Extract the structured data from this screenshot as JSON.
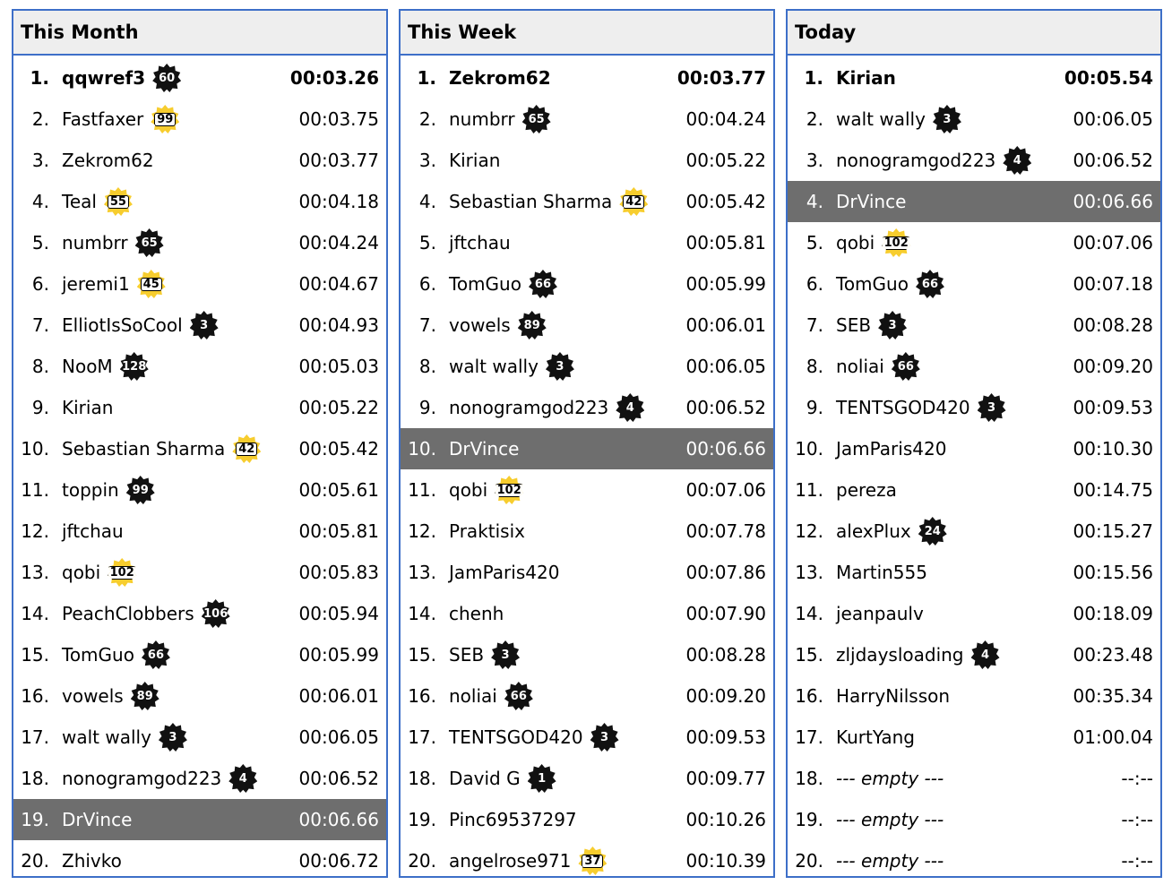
{
  "colors": {
    "border": "#3d6fc8",
    "header_bg": "#eeeeee",
    "highlight_bg": "#6e6e6e",
    "badge_dark": "#111111",
    "badge_gold": "#f7cd2e"
  },
  "boards": [
    {
      "title": "This Month",
      "rows": [
        {
          "rank": "1.",
          "name": "qqwref3",
          "badge": "60",
          "badge_style": "dark",
          "time": "00:03.26"
        },
        {
          "rank": "2.",
          "name": "Fastfaxer",
          "badge": "99",
          "badge_style": "gold",
          "time": "00:03.75"
        },
        {
          "rank": "3.",
          "name": "Zekrom62",
          "badge": "",
          "badge_style": "",
          "time": "00:03.77"
        },
        {
          "rank": "4.",
          "name": "Teal",
          "badge": "55",
          "badge_style": "gold",
          "time": "00:04.18"
        },
        {
          "rank": "5.",
          "name": "numbrr",
          "badge": "65",
          "badge_style": "dark",
          "time": "00:04.24"
        },
        {
          "rank": "6.",
          "name": "jeremi1",
          "badge": "45",
          "badge_style": "gold",
          "time": "00:04.67"
        },
        {
          "rank": "7.",
          "name": "ElliotIsSoCool",
          "badge": "3",
          "badge_style": "dark",
          "time": "00:04.93"
        },
        {
          "rank": "8.",
          "name": "NooM",
          "badge": "128",
          "badge_style": "dark",
          "time": "00:05.03"
        },
        {
          "rank": "9.",
          "name": "Kirian",
          "badge": "",
          "badge_style": "",
          "time": "00:05.22"
        },
        {
          "rank": "10.",
          "name": "Sebastian Sharma",
          "badge": "42",
          "badge_style": "gold",
          "time": "00:05.42"
        },
        {
          "rank": "11.",
          "name": "toppin",
          "badge": "99",
          "badge_style": "dark",
          "time": "00:05.61"
        },
        {
          "rank": "12.",
          "name": "jftchau",
          "badge": "",
          "badge_style": "",
          "time": "00:05.81"
        },
        {
          "rank": "13.",
          "name": "qobi",
          "badge": "102",
          "badge_style": "gold",
          "time": "00:05.83"
        },
        {
          "rank": "14.",
          "name": "PeachClobbers",
          "badge": "106",
          "badge_style": "dark",
          "time": "00:05.94"
        },
        {
          "rank": "15.",
          "name": "TomGuo",
          "badge": "66",
          "badge_style": "dark",
          "time": "00:05.99"
        },
        {
          "rank": "16.",
          "name": "vowels",
          "badge": "89",
          "badge_style": "dark",
          "time": "00:06.01"
        },
        {
          "rank": "17.",
          "name": "walt wally",
          "badge": "3",
          "badge_style": "dark",
          "time": "00:06.05"
        },
        {
          "rank": "18.",
          "name": "nonogramgod223",
          "badge": "4",
          "badge_style": "dark",
          "time": "00:06.52"
        },
        {
          "rank": "19.",
          "name": "DrVince",
          "badge": "",
          "badge_style": "",
          "time": "00:06.66",
          "highlight": true
        },
        {
          "rank": "20.",
          "name": "Zhivko",
          "badge": "",
          "badge_style": "",
          "time": "00:06.72"
        }
      ]
    },
    {
      "title": "This Week",
      "rows": [
        {
          "rank": "1.",
          "name": "Zekrom62",
          "badge": "",
          "badge_style": "",
          "time": "00:03.77"
        },
        {
          "rank": "2.",
          "name": "numbrr",
          "badge": "65",
          "badge_style": "dark",
          "time": "00:04.24"
        },
        {
          "rank": "3.",
          "name": "Kirian",
          "badge": "",
          "badge_style": "",
          "time": "00:05.22"
        },
        {
          "rank": "4.",
          "name": "Sebastian Sharma",
          "badge": "42",
          "badge_style": "gold",
          "time": "00:05.42"
        },
        {
          "rank": "5.",
          "name": "jftchau",
          "badge": "",
          "badge_style": "",
          "time": "00:05.81"
        },
        {
          "rank": "6.",
          "name": "TomGuo",
          "badge": "66",
          "badge_style": "dark",
          "time": "00:05.99"
        },
        {
          "rank": "7.",
          "name": "vowels",
          "badge": "89",
          "badge_style": "dark",
          "time": "00:06.01"
        },
        {
          "rank": "8.",
          "name": "walt wally",
          "badge": "3",
          "badge_style": "dark",
          "time": "00:06.05"
        },
        {
          "rank": "9.",
          "name": "nonogramgod223",
          "badge": "4",
          "badge_style": "dark",
          "time": "00:06.52"
        },
        {
          "rank": "10.",
          "name": "DrVince",
          "badge": "",
          "badge_style": "",
          "time": "00:06.66",
          "highlight": true
        },
        {
          "rank": "11.",
          "name": "qobi",
          "badge": "102",
          "badge_style": "gold",
          "time": "00:07.06"
        },
        {
          "rank": "12.",
          "name": "Praktisix",
          "badge": "",
          "badge_style": "",
          "time": "00:07.78"
        },
        {
          "rank": "13.",
          "name": "JamParis420",
          "badge": "",
          "badge_style": "",
          "time": "00:07.86"
        },
        {
          "rank": "14.",
          "name": "chenh",
          "badge": "",
          "badge_style": "",
          "time": "00:07.90"
        },
        {
          "rank": "15.",
          "name": "SEB",
          "badge": "3",
          "badge_style": "dark",
          "time": "00:08.28"
        },
        {
          "rank": "16.",
          "name": "noliai",
          "badge": "66",
          "badge_style": "dark",
          "time": "00:09.20"
        },
        {
          "rank": "17.",
          "name": "TENTSGOD420",
          "badge": "3",
          "badge_style": "dark",
          "time": "00:09.53"
        },
        {
          "rank": "18.",
          "name": "David G",
          "badge": "1",
          "badge_style": "dark",
          "time": "00:09.77"
        },
        {
          "rank": "19.",
          "name": "Pinc69537297",
          "badge": "",
          "badge_style": "",
          "time": "00:10.26"
        },
        {
          "rank": "20.",
          "name": "angelrose971",
          "badge": "37",
          "badge_style": "gold",
          "time": "00:10.39"
        }
      ]
    },
    {
      "title": "Today",
      "rows": [
        {
          "rank": "1.",
          "name": "Kirian",
          "badge": "",
          "badge_style": "",
          "time": "00:05.54"
        },
        {
          "rank": "2.",
          "name": "walt wally",
          "badge": "3",
          "badge_style": "dark",
          "time": "00:06.05"
        },
        {
          "rank": "3.",
          "name": "nonogramgod223",
          "badge": "4",
          "badge_style": "dark",
          "time": "00:06.52"
        },
        {
          "rank": "4.",
          "name": "DrVince",
          "badge": "",
          "badge_style": "",
          "time": "00:06.66",
          "highlight": true
        },
        {
          "rank": "5.",
          "name": "qobi",
          "badge": "102",
          "badge_style": "gold",
          "time": "00:07.06"
        },
        {
          "rank": "6.",
          "name": "TomGuo",
          "badge": "66",
          "badge_style": "dark",
          "time": "00:07.18"
        },
        {
          "rank": "7.",
          "name": "SEB",
          "badge": "3",
          "badge_style": "dark",
          "time": "00:08.28"
        },
        {
          "rank": "8.",
          "name": "noliai",
          "badge": "66",
          "badge_style": "dark",
          "time": "00:09.20"
        },
        {
          "rank": "9.",
          "name": "TENTSGOD420",
          "badge": "3",
          "badge_style": "dark",
          "time": "00:09.53"
        },
        {
          "rank": "10.",
          "name": "JamParis420",
          "badge": "",
          "badge_style": "",
          "time": "00:10.30"
        },
        {
          "rank": "11.",
          "name": "pereza",
          "badge": "",
          "badge_style": "",
          "time": "00:14.75"
        },
        {
          "rank": "12.",
          "name": "alexPlux",
          "badge": "24",
          "badge_style": "dark",
          "time": "00:15.27"
        },
        {
          "rank": "13.",
          "name": "Martin555",
          "badge": "",
          "badge_style": "",
          "time": "00:15.56"
        },
        {
          "rank": "14.",
          "name": "jeanpaulv",
          "badge": "",
          "badge_style": "",
          "time": "00:18.09"
        },
        {
          "rank": "15.",
          "name": "zljdaysloading",
          "badge": "4",
          "badge_style": "dark",
          "time": "00:23.48"
        },
        {
          "rank": "16.",
          "name": "HarryNilsson",
          "badge": "",
          "badge_style": "",
          "time": "00:35.34"
        },
        {
          "rank": "17.",
          "name": "KurtYang",
          "badge": "",
          "badge_style": "",
          "time": "01:00.04"
        },
        {
          "rank": "18.",
          "name": "--- empty ---",
          "badge": "",
          "badge_style": "",
          "time": "--:--",
          "empty": true
        },
        {
          "rank": "19.",
          "name": "--- empty ---",
          "badge": "",
          "badge_style": "",
          "time": "--:--",
          "empty": true
        },
        {
          "rank": "20.",
          "name": "--- empty ---",
          "badge": "",
          "badge_style": "",
          "time": "--:--",
          "empty": true
        }
      ]
    }
  ]
}
